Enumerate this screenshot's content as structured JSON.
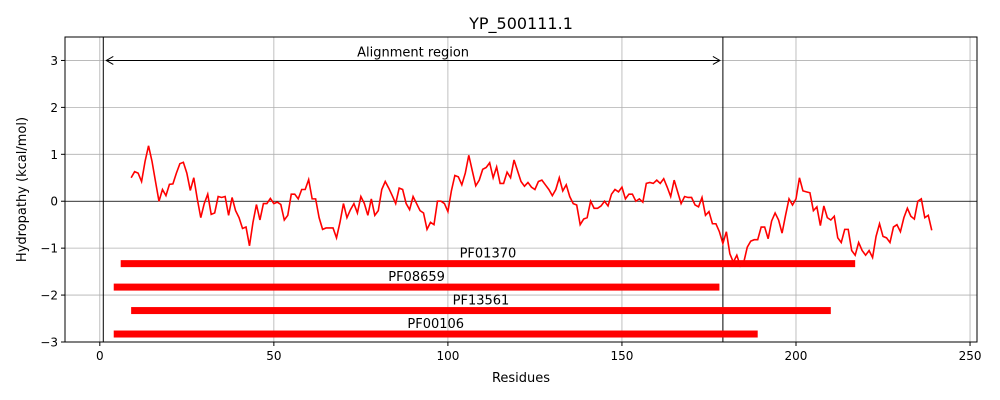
{
  "chart_data": {
    "type": "line",
    "title": "YP_500111.1",
    "xlabel": "Residues",
    "ylabel": "Hydropathy (kcal/mol)",
    "xlim": [
      -10,
      252
    ],
    "ylim": [
      -3,
      3.5
    ],
    "xticks": [
      0,
      50,
      100,
      150,
      200,
      250
    ],
    "yticks": [
      -3,
      -2,
      -1,
      0,
      1,
      2,
      3
    ],
    "xtick_labels": [
      "0",
      "50",
      "100",
      "150",
      "200",
      "250"
    ],
    "ytick_labels": [
      "−3",
      "−2",
      "−1",
      "0",
      "1",
      "2",
      "3"
    ],
    "grid": true,
    "colors": {
      "line": "#ff0000",
      "domain": "#ff0000",
      "axis": "#000000",
      "grid": "#b0b0b0"
    },
    "series": [
      {
        "start_x": 9,
        "values": [
          0.5,
          0.63,
          0.6,
          0.42,
          0.85,
          1.18,
          0.85,
          0.42,
          0.0,
          0.25,
          0.12,
          0.36,
          0.37,
          0.6,
          0.8,
          0.83,
          0.6,
          0.23,
          0.5,
          0.05,
          -0.35,
          -0.05,
          0.15,
          -0.28,
          -0.25,
          0.1,
          0.08,
          0.1,
          -0.3,
          0.08,
          -0.2,
          -0.35,
          -0.58,
          -0.55,
          -0.95,
          -0.45,
          -0.07,
          -0.4,
          -0.05,
          -0.05,
          0.06,
          -0.05,
          -0.02,
          -0.07,
          -0.4,
          -0.3,
          0.15,
          0.15,
          0.05,
          0.25,
          0.25,
          0.46,
          0.05,
          0.05,
          -0.35,
          -0.6,
          -0.57,
          -0.57,
          -0.57,
          -0.78,
          -0.45,
          -0.05,
          -0.35,
          -0.18,
          -0.05,
          -0.25,
          0.1,
          -0.05,
          -0.3,
          0.05,
          -0.3,
          -0.2,
          0.25,
          0.42,
          0.28,
          0.12,
          -0.05,
          0.28,
          0.25,
          -0.05,
          -0.18,
          0.1,
          -0.05,
          -0.2,
          -0.25,
          -0.6,
          -0.45,
          -0.5,
          0.0,
          0.0,
          -0.05,
          -0.22,
          0.22,
          0.55,
          0.52,
          0.35,
          0.6,
          0.98,
          0.65,
          0.33,
          0.45,
          0.68,
          0.72,
          0.82,
          0.5,
          0.73,
          0.38,
          0.38,
          0.62,
          0.5,
          0.88,
          0.65,
          0.42,
          0.32,
          0.4,
          0.3,
          0.25,
          0.42,
          0.45,
          0.35,
          0.25,
          0.12,
          0.25,
          0.5,
          0.22,
          0.35,
          0.1,
          -0.05,
          -0.08,
          -0.5,
          -0.38,
          -0.35,
          0.0,
          -0.15,
          -0.15,
          -0.1,
          0.0,
          -0.1,
          0.15,
          0.25,
          0.2,
          0.3,
          0.05,
          0.15,
          0.15,
          0.0,
          0.05,
          -0.02,
          0.38,
          0.4,
          0.38,
          0.45,
          0.38,
          0.48,
          0.3,
          0.1,
          0.45,
          0.2,
          -0.05,
          0.1,
          0.08,
          0.08,
          -0.08,
          -0.12,
          0.08,
          -0.3,
          -0.22,
          -0.48,
          -0.48,
          -0.65,
          -0.9,
          -0.65,
          -1.12,
          -1.3,
          -1.15,
          -1.38,
          -1.3,
          -0.98,
          -0.85,
          -0.82,
          -0.82,
          -0.55,
          -0.55,
          -0.8,
          -0.42,
          -0.25,
          -0.4,
          -0.68,
          -0.3,
          0.05,
          -0.08,
          0.05,
          0.5,
          0.22,
          0.2,
          0.18,
          -0.2,
          -0.12,
          -0.52,
          -0.1,
          -0.35,
          -0.4,
          -0.32,
          -0.78,
          -0.88,
          -0.6,
          -0.6,
          -1.05,
          -1.15,
          -0.88,
          -1.05,
          -1.15,
          -1.05,
          -1.2,
          -0.75,
          -0.48,
          -0.75,
          -0.78,
          -0.88,
          -0.55,
          -0.5,
          -0.65,
          -0.35,
          -0.15,
          -0.32,
          -0.38,
          0.0,
          0.05,
          -0.35,
          -0.3,
          -0.62
        ]
      }
    ],
    "alignment": {
      "label": "Alignment region",
      "start": 1,
      "end": 179,
      "y": 3.0
    },
    "domains": [
      {
        "name": "PF01370",
        "start": 6,
        "end": 217,
        "y": -1.33
      },
      {
        "name": "PF08659",
        "start": 4,
        "end": 178,
        "y": -1.83
      },
      {
        "name": "PF13561",
        "start": 9,
        "end": 210,
        "y": -2.33
      },
      {
        "name": "PF00106",
        "start": 4,
        "end": 189,
        "y": -2.83
      }
    ]
  }
}
